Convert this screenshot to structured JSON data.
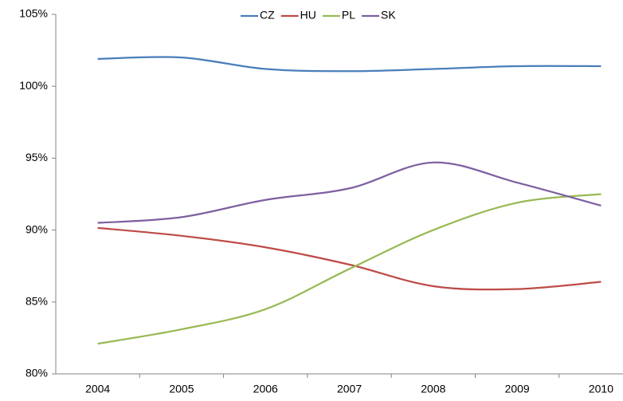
{
  "chart_data": {
    "type": "line",
    "categories": [
      "2004",
      "2005",
      "2006",
      "2007",
      "2008",
      "2009",
      "2010"
    ],
    "series": [
      {
        "name": "CZ",
        "color": "#4a7ebb",
        "values": [
          101.9,
          102.0,
          101.2,
          101.05,
          101.2,
          101.4,
          101.4
        ]
      },
      {
        "name": "HU",
        "color": "#be4b48",
        "values": [
          90.15,
          89.6,
          88.8,
          87.6,
          86.1,
          85.9,
          86.4
        ]
      },
      {
        "name": "PL",
        "color": "#98b954",
        "values": [
          82.1,
          83.1,
          84.5,
          87.3,
          90.0,
          91.9,
          92.5
        ]
      },
      {
        "name": "SK",
        "color": "#7d60a0",
        "values": [
          90.5,
          90.9,
          92.1,
          92.9,
          94.7,
          93.3,
          91.7
        ]
      }
    ],
    "ylim": [
      80,
      105
    ],
    "yticks": [
      {
        "value": 80,
        "label": "80%"
      },
      {
        "value": 85,
        "label": "85%"
      },
      {
        "value": 90,
        "label": "90%"
      },
      {
        "value": 95,
        "label": "95%"
      },
      {
        "value": 100,
        "label": "100%"
      },
      {
        "value": 105,
        "label": "105%"
      }
    ],
    "grid": false,
    "legend": "top",
    "smooth": true
  }
}
